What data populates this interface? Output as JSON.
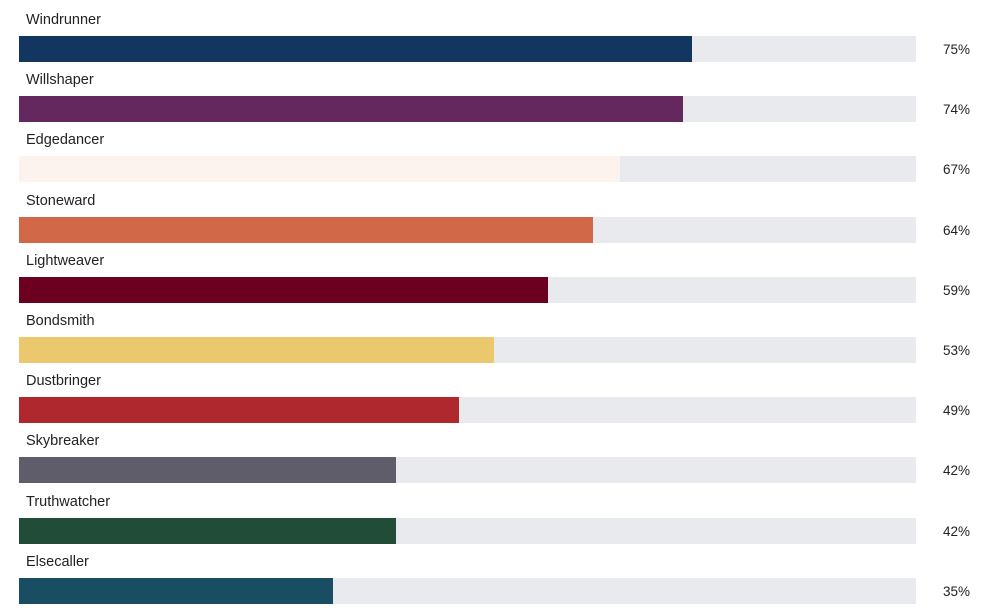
{
  "chart_data": {
    "type": "bar",
    "orientation": "horizontal",
    "value_format": "percent",
    "xlim": [
      0,
      100
    ],
    "grid": false,
    "categories": [
      "Windrunner",
      "Willshaper",
      "Edgedancer",
      "Stoneward",
      "Lightweaver",
      "Bondsmith",
      "Dustbringer",
      "Skybreaker",
      "Truthwatcher",
      "Elsecaller"
    ],
    "values": [
      75,
      74,
      67,
      64,
      59,
      53,
      49,
      42,
      42,
      35
    ],
    "value_labels": [
      "75%",
      "74%",
      "67%",
      "64%",
      "59%",
      "53%",
      "49%",
      "42%",
      "42%",
      "35%"
    ],
    "colors": [
      "#12365f",
      "#65285e",
      "#fcf3ee",
      "#d16848",
      "#6b0020",
      "#ebc86e",
      "#ae282e",
      "#5f5d69",
      "#204c38",
      "#194e62"
    ],
    "track_color": "#e8eaed"
  }
}
